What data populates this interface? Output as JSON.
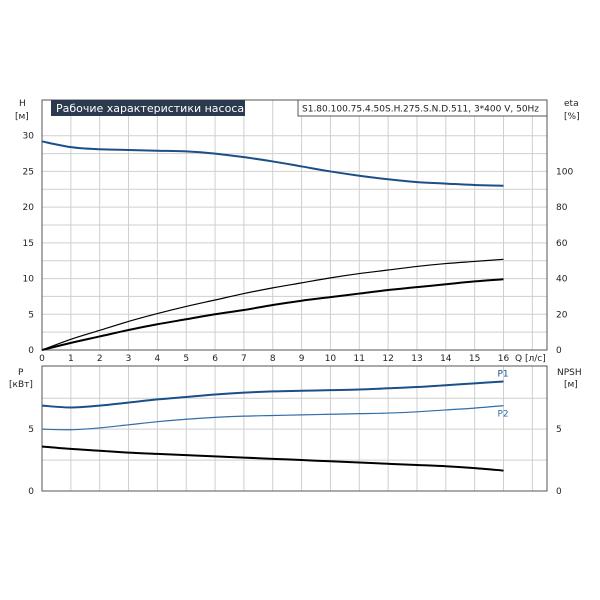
{
  "colors": {
    "blue": "#1b4f8a",
    "light_blue": "#2f6ea8",
    "black": "#000000",
    "grid": "#cfcfcf",
    "title_bg": "#2b3a4e"
  },
  "chart_data": [
    {
      "type": "line",
      "title": "Рабочие характеристики насоса",
      "subtitle": "S1.80.100.75.4.50S.H.275.S.N.D.511, 3*400 V, 50Hz",
      "xlabel": "Q [л/с]",
      "xlim": [
        0,
        16
      ],
      "x_ticks": [
        "0",
        "1",
        "2",
        "3",
        "4",
        "5",
        "6",
        "7",
        "8",
        "9",
        "10",
        "11",
        "12",
        "13",
        "14",
        "15",
        "16"
      ],
      "ylabel_left": [
        "H",
        "[м]"
      ],
      "ylim_left": [
        0,
        35
      ],
      "y_ticks_left": [
        "0",
        "5",
        "10",
        "15",
        "20",
        "25",
        "30"
      ],
      "ylabel_right": [
        "eta",
        "[%]"
      ],
      "ylim_right": [
        0,
        140
      ],
      "y_ticks_right": [
        "0",
        "20",
        "40",
        "60",
        "80",
        "100"
      ],
      "grid": true,
      "series": [
        {
          "axis": "left",
          "color": "#1b4f8a",
          "x": [
            0,
            1,
            2,
            3,
            4,
            5,
            6,
            7,
            8,
            9,
            10,
            11,
            12,
            13,
            14,
            15,
            16
          ],
          "values": [
            29.2,
            28.4,
            28.1,
            28.0,
            27.9,
            27.8,
            27.5,
            27.0,
            26.4,
            25.7,
            25.0,
            24.4,
            23.9,
            23.5,
            23.3,
            23.1,
            23.0
          ]
        },
        {
          "axis": "right",
          "color": "#000000",
          "x": [
            0,
            1,
            2,
            3,
            4,
            5,
            6,
            7,
            8,
            9,
            10,
            11,
            12,
            13,
            14,
            15,
            16
          ],
          "values": [
            0,
            6,
            11,
            16,
            20.4,
            24.4,
            28,
            31.6,
            34.8,
            37.6,
            40.4,
            42.8,
            44.8,
            46.8,
            48.4,
            49.6,
            50.8
          ]
        },
        {
          "axis": "left",
          "color": "#000000",
          "x": [
            0,
            1,
            2,
            3,
            4,
            5,
            6,
            7,
            8,
            9,
            10,
            11,
            12,
            13,
            14,
            15,
            16
          ],
          "values": [
            0,
            1.0,
            1.9,
            2.8,
            3.6,
            4.3,
            5.0,
            5.6,
            6.3,
            6.9,
            7.4,
            7.9,
            8.4,
            8.8,
            9.2,
            9.6,
            9.9
          ]
        }
      ]
    },
    {
      "type": "line",
      "xlim": [
        0,
        16
      ],
      "ylabel_left": [
        "P",
        "[кВт]"
      ],
      "ylim_left": [
        0,
        10
      ],
      "y_ticks_left": [
        "0",
        "5"
      ],
      "ylabel_right": [
        "NPSH",
        "[м]"
      ],
      "ylim_right": [
        0,
        10
      ],
      "y_ticks_right": [
        "0",
        "5"
      ],
      "grid": true,
      "series": [
        {
          "name": "P1",
          "axis": "left",
          "color": "#1b4f8a",
          "x": [
            0,
            1,
            2,
            3,
            4,
            5,
            6,
            7,
            8,
            9,
            10,
            11,
            12,
            13,
            14,
            15,
            16
          ],
          "values": [
            6.9,
            6.75,
            6.9,
            7.15,
            7.4,
            7.6,
            7.8,
            7.95,
            8.05,
            8.1,
            8.15,
            8.2,
            8.3,
            8.4,
            8.55,
            8.7,
            8.85
          ]
        },
        {
          "name": "P2",
          "axis": "left",
          "color": "#2f6ea8",
          "x": [
            0,
            1,
            2,
            3,
            4,
            5,
            6,
            7,
            8,
            9,
            10,
            11,
            12,
            13,
            14,
            15,
            16
          ],
          "values": [
            5.0,
            4.95,
            5.1,
            5.35,
            5.6,
            5.8,
            5.95,
            6.05,
            6.1,
            6.15,
            6.2,
            6.25,
            6.3,
            6.4,
            6.55,
            6.7,
            6.9
          ]
        },
        {
          "axis": "right",
          "color": "#000000",
          "x": [
            0,
            1,
            2,
            3,
            4,
            5,
            6,
            7,
            8,
            9,
            10,
            11,
            12,
            13,
            14,
            15,
            16
          ],
          "values": [
            3.6,
            3.4,
            3.25,
            3.1,
            3.0,
            2.9,
            2.8,
            2.7,
            2.6,
            2.5,
            2.4,
            2.3,
            2.2,
            2.1,
            2.0,
            1.85,
            1.65
          ]
        }
      ]
    }
  ]
}
